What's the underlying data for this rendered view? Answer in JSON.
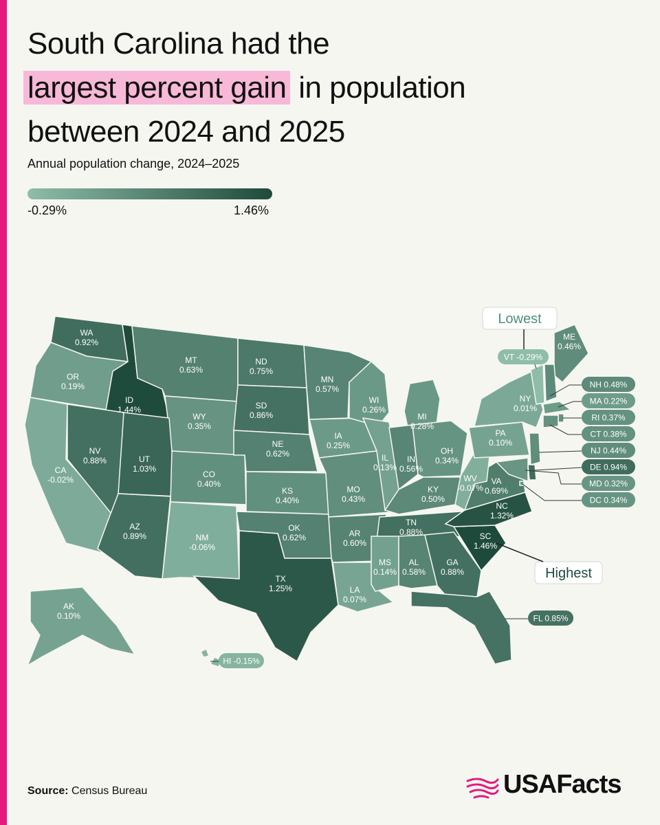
{
  "header": {
    "title_line1": "South Carolina had the",
    "title_highlight": "largest percent gain",
    "title_line2_rest": " in population",
    "title_line3": "between 2024 and 2025",
    "subtitle": "Annual population change, 2024–2025"
  },
  "legend": {
    "min_label": "-0.29%",
    "max_label": "1.46%",
    "min_value": -0.29,
    "max_value": 1.46,
    "color_low": "#8fbdaa",
    "color_high": "#1e4a3c"
  },
  "callouts": {
    "lowest": "Lowest",
    "highest": "Highest"
  },
  "colors": {
    "accent": "#e6197d",
    "highlight": "#f7b9d7",
    "background": "#f6f6f1"
  },
  "states": [
    {
      "abbr": "WA",
      "label": "0.92%",
      "value": 0.92
    },
    {
      "abbr": "OR",
      "label": "0.19%",
      "value": 0.19
    },
    {
      "abbr": "CA",
      "label": "-0.02%",
      "value": -0.02
    },
    {
      "abbr": "ID",
      "label": "1.44%",
      "value": 1.44
    },
    {
      "abbr": "NV",
      "label": "0.88%",
      "value": 0.88
    },
    {
      "abbr": "MT",
      "label": "0.63%",
      "value": 0.63
    },
    {
      "abbr": "WY",
      "label": "0.35%",
      "value": 0.35
    },
    {
      "abbr": "UT",
      "label": "1.03%",
      "value": 1.03
    },
    {
      "abbr": "AZ",
      "label": "0.89%",
      "value": 0.89
    },
    {
      "abbr": "CO",
      "label": "0.40%",
      "value": 0.4
    },
    {
      "abbr": "NM",
      "label": "-0.06%",
      "value": -0.06
    },
    {
      "abbr": "ND",
      "label": "0.75%",
      "value": 0.75
    },
    {
      "abbr": "SD",
      "label": "0.86%",
      "value": 0.86
    },
    {
      "abbr": "NE",
      "label": "0.62%",
      "value": 0.62
    },
    {
      "abbr": "KS",
      "label": "0.40%",
      "value": 0.4
    },
    {
      "abbr": "OK",
      "label": "0.62%",
      "value": 0.62
    },
    {
      "abbr": "TX",
      "label": "1.25%",
      "value": 1.25
    },
    {
      "abbr": "MN",
      "label": "0.57%",
      "value": 0.57
    },
    {
      "abbr": "IA",
      "label": "0.25%",
      "value": 0.25
    },
    {
      "abbr": "MO",
      "label": "0.43%",
      "value": 0.43
    },
    {
      "abbr": "AR",
      "label": "0.60%",
      "value": 0.6
    },
    {
      "abbr": "LA",
      "label": "0.07%",
      "value": 0.07
    },
    {
      "abbr": "WI",
      "label": "0.26%",
      "value": 0.26
    },
    {
      "abbr": "IL",
      "label": "0.13%",
      "value": 0.13
    },
    {
      "abbr": "MI",
      "label": "0.28%",
      "value": 0.28
    },
    {
      "abbr": "IN",
      "label": "0.56%",
      "value": 0.56
    },
    {
      "abbr": "OH",
      "label": "0.34%",
      "value": 0.34
    },
    {
      "abbr": "KY",
      "label": "0.50%",
      "value": 0.5
    },
    {
      "abbr": "TN",
      "label": "0.88%",
      "value": 0.88
    },
    {
      "abbr": "MS",
      "label": "0.14%",
      "value": 0.14
    },
    {
      "abbr": "AL",
      "label": "0.58%",
      "value": 0.58
    },
    {
      "abbr": "GA",
      "label": "0.88%",
      "value": 0.88
    },
    {
      "abbr": "FL",
      "label": "0.85%",
      "value": 0.85
    },
    {
      "abbr": "SC",
      "label": "1.46%",
      "value": 1.46
    },
    {
      "abbr": "NC",
      "label": "1.32%",
      "value": 1.32
    },
    {
      "abbr": "VA",
      "label": "0.69%",
      "value": 0.69
    },
    {
      "abbr": "WV",
      "label": "-0.07%",
      "value": -0.07
    },
    {
      "abbr": "PA",
      "label": "0.10%",
      "value": 0.1
    },
    {
      "abbr": "NY",
      "label": "0.01%",
      "value": 0.01
    },
    {
      "abbr": "VT",
      "label": "-0.29%",
      "value": -0.29
    },
    {
      "abbr": "ME",
      "label": "0.46%",
      "value": 0.46
    },
    {
      "abbr": "NH",
      "label": "0.48%",
      "value": 0.48
    },
    {
      "abbr": "MA",
      "label": "0.22%",
      "value": 0.22
    },
    {
      "abbr": "RI",
      "label": "0.37%",
      "value": 0.37
    },
    {
      "abbr": "CT",
      "label": "0.38%",
      "value": 0.38
    },
    {
      "abbr": "NJ",
      "label": "0.44%",
      "value": 0.44
    },
    {
      "abbr": "DE",
      "label": "0.94%",
      "value": 0.94
    },
    {
      "abbr": "MD",
      "label": "0.32%",
      "value": 0.32
    },
    {
      "abbr": "DC",
      "label": "0.34%",
      "value": 0.34
    },
    {
      "abbr": "AK",
      "label": "0.10%",
      "value": 0.1
    },
    {
      "abbr": "HI",
      "label": "-0.15%",
      "value": -0.15
    }
  ],
  "footer": {
    "source_label": "Source:",
    "source_value": " Census Bureau",
    "logo_text": "USAFacts"
  }
}
